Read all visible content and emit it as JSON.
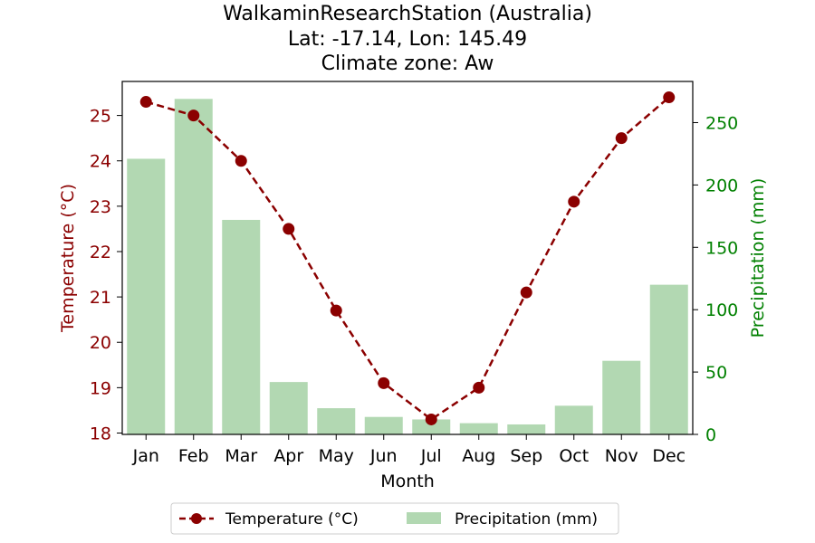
{
  "chart_data": {
    "type": "bar+line",
    "title_lines": [
      "WalkaminResearchStation (Australia)",
      "Lat: -17.14, Lon: 145.49",
      "Climate zone: Aw"
    ],
    "xlabel": "Month",
    "categories": [
      "Jan",
      "Feb",
      "Mar",
      "Apr",
      "May",
      "Jun",
      "Jul",
      "Aug",
      "Sep",
      "Oct",
      "Nov",
      "Dec"
    ],
    "temperature": {
      "name": "Temperature (°C)",
      "axis_label": "Temperature (°C)",
      "values": [
        25.3,
        25.0,
        24.0,
        22.5,
        20.7,
        19.1,
        18.3,
        19.0,
        21.1,
        23.1,
        24.5,
        25.4
      ],
      "ylim": [
        17.97,
        25.75
      ],
      "ticks": [
        18,
        19,
        20,
        21,
        22,
        23,
        24,
        25
      ],
      "color": "#8b0000",
      "style": "dashed line with circle markers"
    },
    "precipitation": {
      "name": "Precipitation (mm)",
      "axis_label": "Precipitation (mm)",
      "values": [
        221,
        269,
        172,
        42,
        21,
        14,
        12,
        9,
        8,
        23,
        59,
        120
      ],
      "ylim": [
        0,
        283
      ],
      "ticks": [
        0,
        50,
        100,
        150,
        200,
        250
      ],
      "color": "#b2d8b2",
      "tick_color": "#008000"
    },
    "grid": false,
    "legend_position": "bottom-center"
  }
}
